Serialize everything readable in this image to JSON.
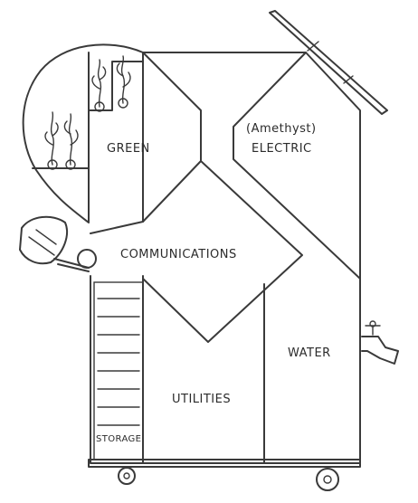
{
  "diagram": {
    "labels": {
      "green": "GREEN",
      "electric_top": "(Amethyst)",
      "electric_bottom": "ELECTRIC",
      "communications": "COMMUNICATIONS",
      "water": "WATER",
      "utilities": "UTILITIES",
      "storage": "STORAGE"
    },
    "colors": {
      "ink": "#3a3a3a",
      "paper": "#ffffff"
    },
    "icons": [
      "plant-icon",
      "satellite-dish-icon",
      "solar-panel-icon",
      "water-faucet-icon",
      "wheel-icon"
    ]
  }
}
